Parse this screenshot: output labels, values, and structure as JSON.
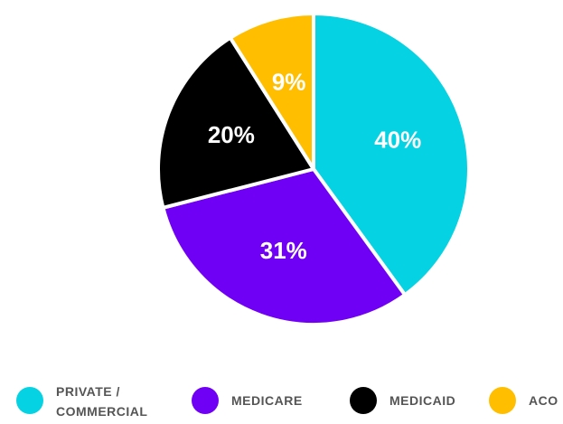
{
  "chart_data": {
    "type": "pie",
    "categories": [
      "PRIVATE / COMMERCIAL",
      "MEDICARE",
      "MEDICAID",
      "ACO"
    ],
    "values": [
      40,
      31,
      20,
      9
    ],
    "value_labels": [
      "40%",
      "31%",
      "20%",
      "9%"
    ],
    "colors": [
      "#05d2e2",
      "#7000f5",
      "#000000",
      "#ffbf00"
    ],
    "legend": "bottom"
  }
}
